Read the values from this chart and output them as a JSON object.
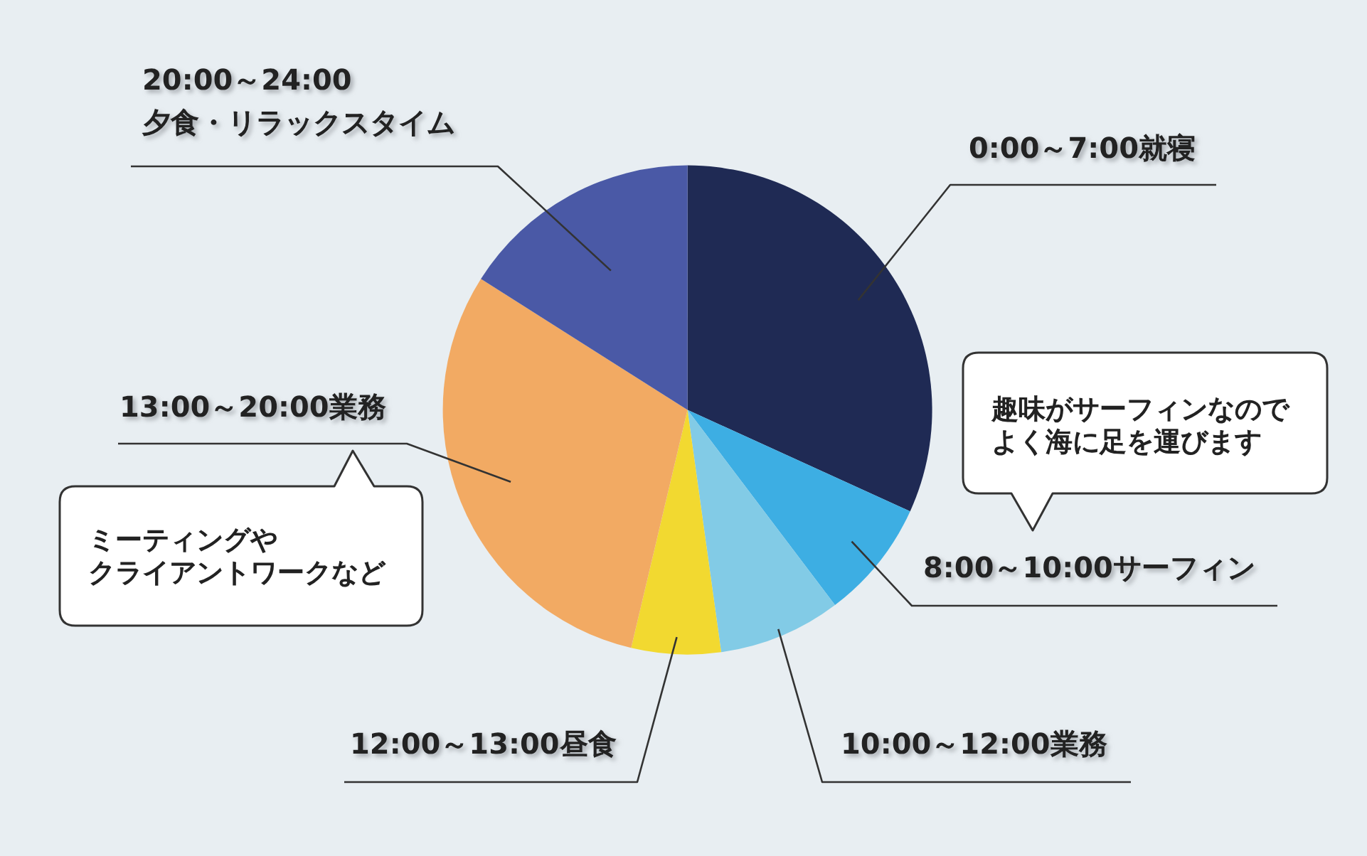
{
  "chart_data": {
    "type": "pie",
    "categories": [
      "0:00～7:00就寝",
      "8:00～10:00サーフィン",
      "10:00～12:00業務",
      "12:00～13:00昼食",
      "13:00～20:00業務",
      "20:00～24:00\n夕食・リラックスタイム"
    ],
    "values": [
      31.8,
      7.9,
      8.1,
      5.9,
      30.3,
      16.0
    ],
    "colors": [
      "#1f2a54",
      "#3daee3",
      "#82cbe6",
      "#f2d930",
      "#f2aa63",
      "#4a59a6"
    ],
    "annotations": [
      "趣味がサーフィンなので",
      "よく海に足を運びます",
      "ミーティングや",
      "クライアントワークなど"
    ]
  }
}
